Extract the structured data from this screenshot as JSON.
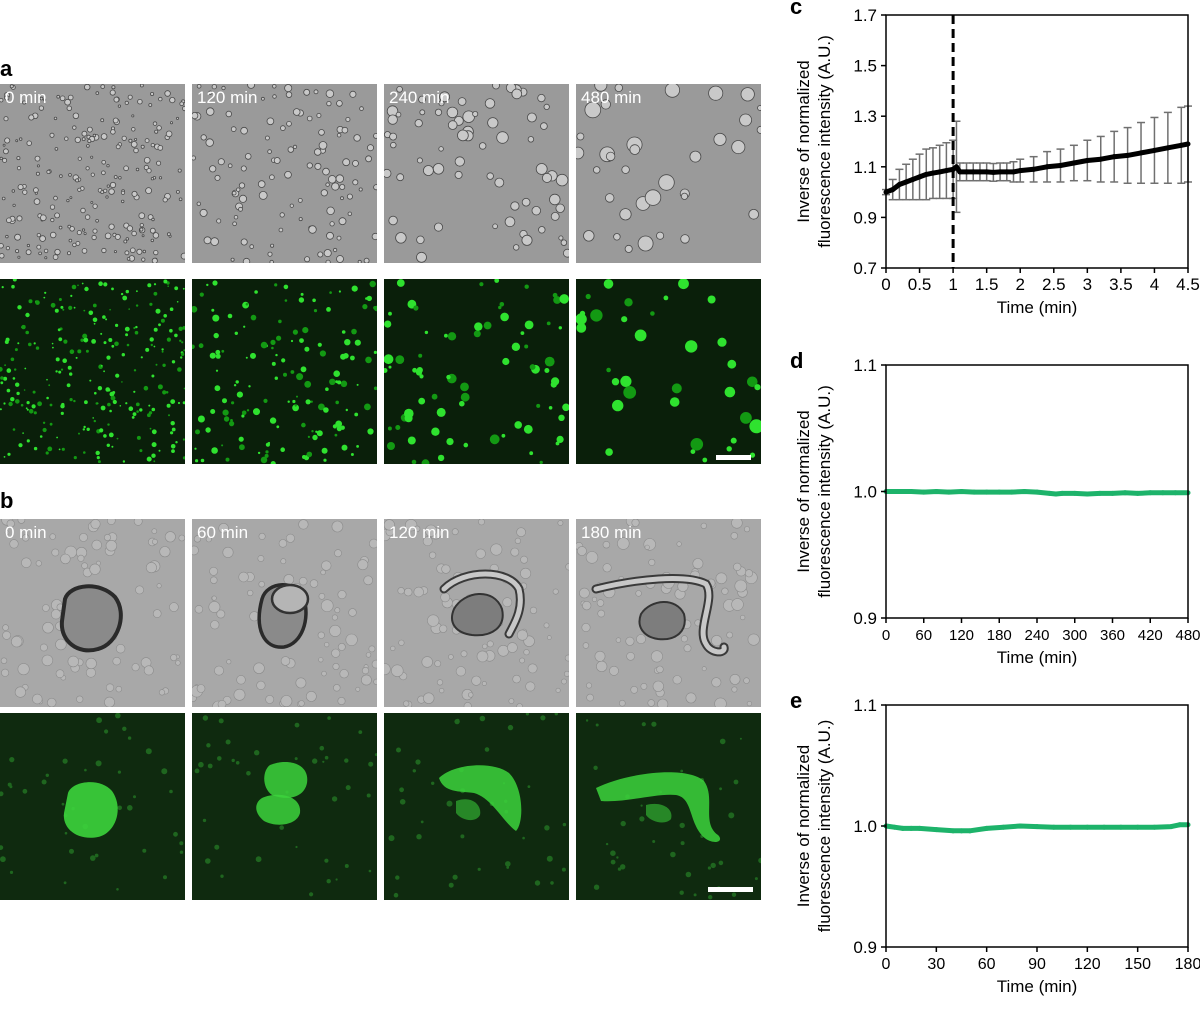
{
  "panels": {
    "a": "a",
    "b": "b",
    "c": "c",
    "d": "d",
    "e": "e"
  },
  "panel_a": {
    "times": [
      "0 min",
      "120 min",
      "240 min",
      "480 min"
    ]
  },
  "panel_b": {
    "times": [
      "0 min",
      "60 min",
      "120 min",
      "180 min"
    ]
  },
  "colors": {
    "brightfield": "#9a9a9a",
    "fluorescence": "#19c619",
    "trace_green": "#1db36a",
    "error_bar": "#707070"
  },
  "chart_data": [
    {
      "panel": "c",
      "type": "line",
      "xlabel": "Time (min)",
      "ylabel": [
        "Inverse of normalized",
        "fluorescence intensity (A.U.)"
      ],
      "xlim": [
        0,
        4.5
      ],
      "ylim": [
        0.7,
        1.7
      ],
      "xticks": [
        0,
        0.5,
        1,
        1.5,
        2,
        2.5,
        3,
        3.5,
        4,
        4.5
      ],
      "xtick_labels": [
        "0",
        "0.5",
        "1",
        "1.5",
        "2",
        "2.5",
        "3",
        "3.5",
        "4",
        "4.5"
      ],
      "yticks": [
        0.7,
        0.9,
        1.1,
        1.3,
        1.5,
        1.7
      ],
      "ytick_labels": [
        "0.7",
        "0.9",
        "1.1",
        "1.3",
        "1.5",
        "1.7"
      ],
      "vline_x": 1.0,
      "x": [
        0,
        0.1,
        0.2,
        0.3,
        0.4,
        0.5,
        0.6,
        0.7,
        0.8,
        0.9,
        1.0,
        1.05,
        1.1,
        1.2,
        1.3,
        1.4,
        1.5,
        1.6,
        1.7,
        1.8,
        1.9,
        2.0,
        2.2,
        2.4,
        2.6,
        2.8,
        3.0,
        3.2,
        3.4,
        3.6,
        3.8,
        4.0,
        4.2,
        4.4,
        4.5
      ],
      "y": [
        1.0,
        1.01,
        1.03,
        1.04,
        1.05,
        1.06,
        1.07,
        1.075,
        1.08,
        1.085,
        1.09,
        1.1,
        1.08,
        1.08,
        1.08,
        1.08,
        1.08,
        1.078,
        1.08,
        1.08,
        1.08,
        1.085,
        1.09,
        1.1,
        1.105,
        1.115,
        1.125,
        1.13,
        1.14,
        1.145,
        1.155,
        1.165,
        1.175,
        1.185,
        1.19
      ],
      "err": [
        0.01,
        0.04,
        0.06,
        0.07,
        0.08,
        0.09,
        0.1,
        0.1,
        0.105,
        0.11,
        0.115,
        0.18,
        0.035,
        0.035,
        0.035,
        0.035,
        0.035,
        0.035,
        0.035,
        0.035,
        0.04,
        0.045,
        0.05,
        0.06,
        0.065,
        0.07,
        0.08,
        0.09,
        0.1,
        0.11,
        0.12,
        0.13,
        0.14,
        0.15,
        0.15
      ]
    },
    {
      "panel": "d",
      "type": "line",
      "xlabel": "Time (min)",
      "ylabel": [
        "Inverse of normalized",
        "fluorescence intensity (A.U.)"
      ],
      "xlim": [
        0,
        480
      ],
      "ylim": [
        0.9,
        1.1
      ],
      "xticks": [
        0,
        60,
        120,
        180,
        240,
        300,
        360,
        420,
        480
      ],
      "xtick_labels": [
        "0",
        "60",
        "120",
        "180",
        "240",
        "300",
        "360",
        "420",
        "480"
      ],
      "yticks": [
        0.9,
        1.0,
        1.1
      ],
      "ytick_labels": [
        "0.9",
        "1.0",
        "1.1"
      ],
      "x": [
        0,
        20,
        40,
        60,
        80,
        100,
        120,
        140,
        160,
        180,
        200,
        220,
        240,
        260,
        270,
        280,
        300,
        320,
        340,
        360,
        380,
        400,
        420,
        440,
        460,
        480
      ],
      "y": [
        1.0,
        1.0,
        1.0,
        0.9995,
        1.0,
        0.9995,
        1.0,
        0.9995,
        0.9995,
        0.9995,
        0.9995,
        1.0,
        0.9995,
        0.9985,
        0.998,
        0.9985,
        0.9985,
        0.998,
        0.9985,
        0.9985,
        0.999,
        0.9985,
        0.999,
        0.999,
        0.999,
        0.999
      ]
    },
    {
      "panel": "e",
      "type": "line",
      "xlabel": "Time (min)",
      "ylabel": [
        "Inverse of normalized",
        "fluorescence intensity (A.U.)"
      ],
      "xlim": [
        0,
        180
      ],
      "ylim": [
        0.9,
        1.1
      ],
      "xticks": [
        0,
        30,
        60,
        90,
        120,
        150,
        180
      ],
      "xtick_labels": [
        "0",
        "30",
        "60",
        "90",
        "120",
        "150",
        "180"
      ],
      "yticks": [
        0.9,
        1.0,
        1.1
      ],
      "ytick_labels": [
        "0.9",
        "1.0",
        "1.1"
      ],
      "x": [
        0,
        5,
        10,
        15,
        20,
        30,
        40,
        45,
        50,
        60,
        70,
        80,
        90,
        100,
        110,
        120,
        130,
        140,
        150,
        160,
        170,
        175,
        180
      ],
      "y": [
        1.0,
        0.999,
        0.998,
        0.998,
        0.998,
        0.997,
        0.996,
        0.996,
        0.996,
        0.998,
        0.999,
        1.0,
        0.9995,
        0.999,
        0.999,
        0.999,
        0.999,
        0.999,
        0.999,
        0.999,
        0.9995,
        1.001,
        1.001
      ]
    }
  ]
}
